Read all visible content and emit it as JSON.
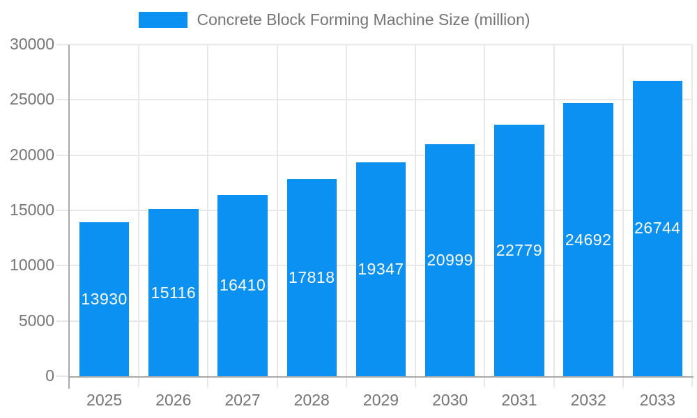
{
  "colors": {
    "bar": "#0a91f2",
    "grid": "#e8e8e8",
    "axis": "#a9a9a9",
    "text": "#757575",
    "bar_label": "#ffffff",
    "background": "#ffffff"
  },
  "legend": {
    "label": "Concrete Block Forming Machine Size (million)"
  },
  "chart_data": {
    "type": "bar",
    "title": "Concrete Block Forming Machine Size (million)",
    "categories": [
      "2025",
      "2026",
      "2027",
      "2028",
      "2029",
      "2030",
      "2031",
      "2032",
      "2033"
    ],
    "values": [
      13930,
      15116,
      16410,
      17818,
      19347,
      20999,
      22779,
      24692,
      26744
    ],
    "series": [
      {
        "name": "Concrete Block Forming Machine Size (million)",
        "values": [
          13930,
          15116,
          16410,
          17818,
          19347,
          20999,
          22779,
          24692,
          26744
        ]
      }
    ],
    "xlabel": "",
    "ylabel": "",
    "ylim": [
      0,
      30000
    ],
    "yticks": [
      0,
      5000,
      10000,
      15000,
      20000,
      25000,
      30000
    ],
    "grid": true,
    "legend_position": "top",
    "value_labels": "inside-center-white"
  }
}
